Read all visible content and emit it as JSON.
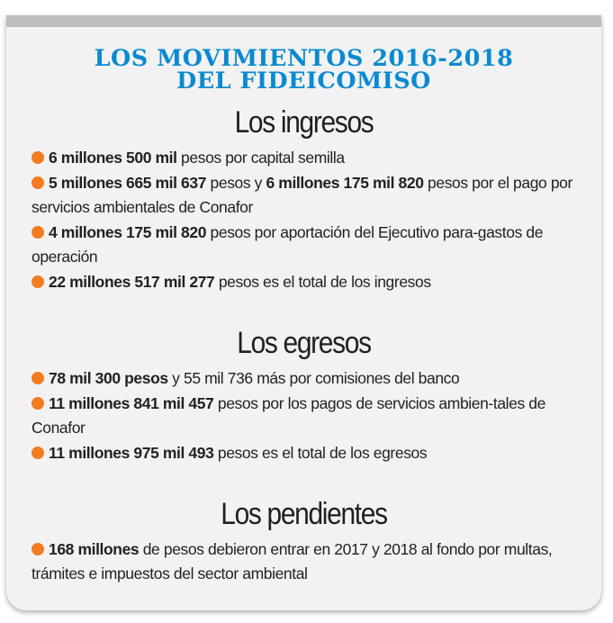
{
  "title": {
    "line1": "LOS MOVIMIENTOS 2016-2018",
    "line2": "DEL FIDEICOMISO"
  },
  "accent_color": "#0a8ad0",
  "bullet_color": "#f47b20",
  "sections": [
    {
      "heading": "Los ingresos",
      "items": [
        {
          "s": [
            "6 millones 500 mil",
            " pesos por capital semilla"
          ]
        },
        {
          "s": [
            "5 millones 665 mil 637",
            " pesos y ",
            "6 millones 175 mil 820",
            " pesos por el pago por servicios ambientales de Conafor"
          ]
        },
        {
          "s": [
            "4 millones 175 mil 820",
            " pesos por aportación del Ejecutivo para-gastos de operación"
          ]
        },
        {
          "s": [
            "22 millones 517 mil 277",
            " pesos es el total de los ingresos"
          ]
        }
      ]
    },
    {
      "heading": "Los egresos",
      "items": [
        {
          "s": [
            "78 mil 300 pesos",
            " y 55 mil 736 más por comisiones del banco"
          ]
        },
        {
          "s": [
            "11 millones 841 mil 457",
            " pesos por los pagos de servicios ambien-tales de Conafor"
          ]
        },
        {
          "s": [
            "11 millones 975 mil 493",
            " pesos es el total de los egresos"
          ]
        }
      ]
    },
    {
      "heading": "Los pendientes",
      "items": [
        {
          "s": [
            "168 millones",
            " de pesos debieron entrar en 2017 y 2018 al fondo por multas, trámites e impuestos del sector ambiental"
          ]
        }
      ]
    }
  ]
}
